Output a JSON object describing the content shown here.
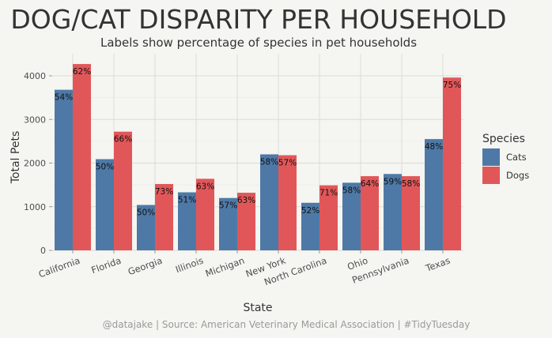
{
  "chart_data": {
    "type": "bar",
    "title": "DOG/CAT DISPARITY PER HOUSEHOLD",
    "subtitle": "Labels show percentage of species in pet households",
    "xlabel": "State",
    "ylabel": "Total Pets",
    "caption": "@datajake | Source: American Veterinary Medical Association | #TidyTuesday",
    "categories": [
      "California",
      "Florida",
      "Georgia",
      "Illinois",
      "Michigan",
      "New York",
      "North Carolina",
      "Ohio",
      "Pennsylvania",
      "Texas"
    ],
    "series": [
      {
        "name": "Cats",
        "color": "#4e79a7",
        "values": [
          3680,
          2090,
          1040,
          1330,
          1200,
          2200,
          1090,
          1550,
          1750,
          2550
        ],
        "labels": [
          "54%",
          "50%",
          "50%",
          "51%",
          "57%",
          "58%",
          "52%",
          "58%",
          "59%",
          "48%"
        ]
      },
      {
        "name": "Dogs",
        "color": "#e15759",
        "values": [
          4270,
          2720,
          1520,
          1640,
          1320,
          2180,
          1490,
          1700,
          1700,
          3960
        ],
        "labels": [
          "62%",
          "66%",
          "73%",
          "63%",
          "63%",
          "57%",
          "71%",
          "64%",
          "58%",
          "75%"
        ]
      }
    ],
    "yticks": [
      0,
      1000,
      2000,
      3000,
      4000
    ],
    "ylim": [
      0,
      4500
    ],
    "grid": true,
    "legend": {
      "title": "Species",
      "position": "right"
    }
  }
}
